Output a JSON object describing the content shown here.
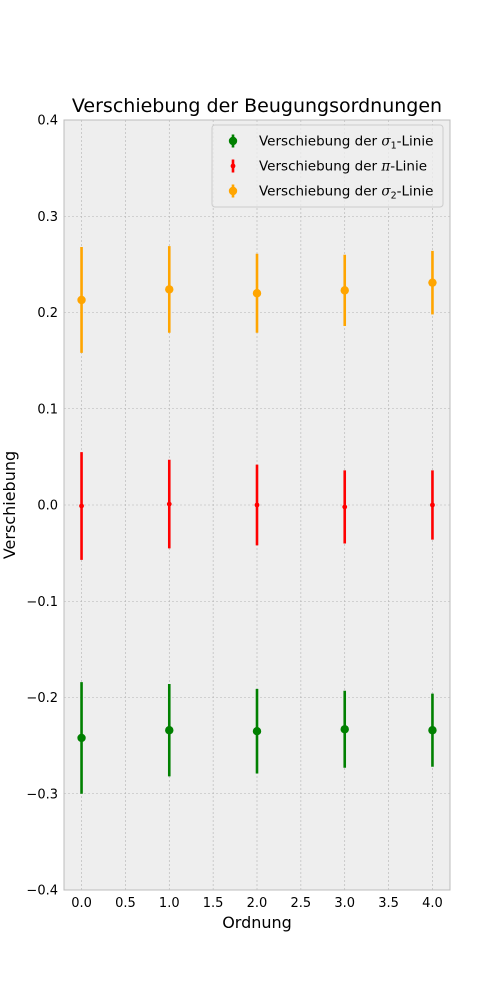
{
  "chart_data": {
    "type": "scatter",
    "title": "Verschiebung der Beugungsordnungen",
    "xlabel": "Ordnung",
    "ylabel": "Verschiebung",
    "xlim": [
      -0.2,
      4.2
    ],
    "ylim": [
      -0.4,
      0.4
    ],
    "xticks": [
      0.0,
      0.5,
      1.0,
      1.5,
      2.0,
      2.5,
      3.0,
      3.5,
      4.0
    ],
    "xtick_labels": [
      "0.0",
      "0.5",
      "1.0",
      "1.5",
      "2.0",
      "2.5",
      "3.0",
      "3.5",
      "4.0"
    ],
    "yticks": [
      -0.4,
      -0.3,
      -0.2,
      -0.1,
      0.0,
      0.1,
      0.2,
      0.3,
      0.4
    ],
    "ytick_labels": [
      "−0.4",
      "−0.3",
      "−0.2",
      "−0.1",
      "0.0",
      "0.1",
      "0.2",
      "0.3",
      "0.4"
    ],
    "grid": true,
    "legend_position": "top-right",
    "series": [
      {
        "name": "Verschiebung der σ1-Linie",
        "legend_pre": "Verschiebung der ",
        "legend_sym": "σ",
        "legend_sub": "1",
        "legend_post": "-Linie",
        "color": "#008000",
        "marker": "large",
        "x": [
          0,
          1,
          2,
          3,
          4
        ],
        "y": [
          -0.242,
          -0.234,
          -0.235,
          -0.233,
          -0.234
        ],
        "yerr": [
          0.058,
          0.048,
          0.044,
          0.04,
          0.038
        ]
      },
      {
        "name": "Verschiebung der π-Linie",
        "legend_pre": "Verschiebung der ",
        "legend_sym": "π",
        "legend_sub": "",
        "legend_post": "-Linie",
        "color": "#ff0000",
        "marker": "small",
        "x": [
          0,
          1,
          2,
          3,
          4
        ],
        "y": [
          -0.001,
          0.001,
          0.0,
          -0.002,
          0.0
        ],
        "yerr": [
          0.056,
          0.046,
          0.042,
          0.038,
          0.036
        ]
      },
      {
        "name": "Verschiebung der σ2-Linie",
        "legend_pre": "Verschiebung der ",
        "legend_sym": "σ",
        "legend_sub": "2",
        "legend_post": "-Linie",
        "color": "#ffa500",
        "marker": "large",
        "x": [
          0,
          1,
          2,
          3,
          4
        ],
        "y": [
          0.213,
          0.224,
          0.22,
          0.223,
          0.231
        ],
        "yerr": [
          0.055,
          0.045,
          0.041,
          0.037,
          0.033
        ]
      }
    ]
  }
}
